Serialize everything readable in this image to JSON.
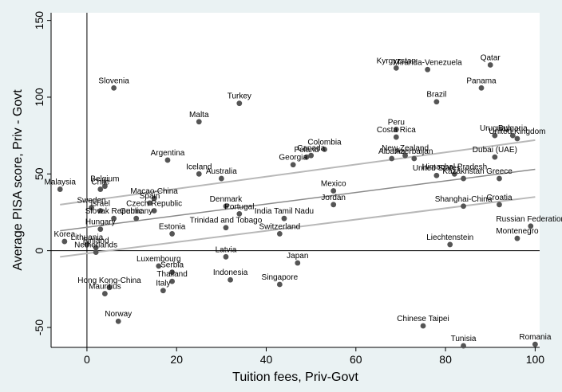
{
  "chart_data": {
    "type": "scatter",
    "title": "",
    "xlabel": "Tuition fees, Priv-Govt",
    "ylabel": "Average PISA score, Priv - Govt",
    "xlim": [
      -8,
      101
    ],
    "ylim": [
      -63,
      155
    ],
    "xticks": [
      0,
      20,
      40,
      60,
      80,
      100
    ],
    "yticks": [
      -50,
      0,
      50,
      100,
      150
    ],
    "grid": false,
    "legend": "none",
    "reference_lines": {
      "x": 0,
      "y": 0
    },
    "colors": {
      "background": "#eaf2f3",
      "plot_background": "#ffffff",
      "points": "#555555",
      "fit_line": "#8a8a8a",
      "ci_lines": "#b8b8b8"
    },
    "fit_line": {
      "x": [
        -6,
        100
      ],
      "y": [
        13,
        53
      ]
    },
    "ci_upper": {
      "x": [
        -6,
        100
      ],
      "y": [
        30,
        72
      ]
    },
    "ci_lower": {
      "x": [
        -6,
        100
      ],
      "y": [
        -4,
        35
      ]
    },
    "points": [
      {
        "label": "Kyrgyzstan",
        "x": 69,
        "y": 119
      },
      {
        "label": "Miranda-Venezuela",
        "x": 76,
        "y": 118
      },
      {
        "label": "Qatar",
        "x": 90,
        "y": 121
      },
      {
        "label": "Panama",
        "x": 88,
        "y": 106
      },
      {
        "label": "Slovenia",
        "x": 6,
        "y": 106
      },
      {
        "label": "Turkey",
        "x": 34,
        "y": 96
      },
      {
        "label": "Brazil",
        "x": 78,
        "y": 97
      },
      {
        "label": "Malta",
        "x": 25,
        "y": 84
      },
      {
        "label": "Peru",
        "x": 69,
        "y": 79
      },
      {
        "label": "Costa Rica",
        "x": 69,
        "y": 74
      },
      {
        "label": "Uruguay",
        "x": 91,
        "y": 75
      },
      {
        "label": "Bulgaria",
        "x": 95,
        "y": 75
      },
      {
        "label": "United Kingdom",
        "x": 96,
        "y": 73
      },
      {
        "label": "Colombia",
        "x": 53,
        "y": 66
      },
      {
        "label": "Canada",
        "x": 50,
        "y": 62
      },
      {
        "label": "Poland",
        "x": 49,
        "y": 61
      },
      {
        "label": "Georgia",
        "x": 46,
        "y": 56
      },
      {
        "label": "Albania",
        "x": 68,
        "y": 60
      },
      {
        "label": "New Zealand",
        "x": 71,
        "y": 62
      },
      {
        "label": "Azerbaijan",
        "x": 73,
        "y": 60
      },
      {
        "label": "Dubai (UAE)",
        "x": 91,
        "y": 61
      },
      {
        "label": "Argentina",
        "x": 18,
        "y": 59
      },
      {
        "label": "Iceland",
        "x": 25,
        "y": 50
      },
      {
        "label": "Australia",
        "x": 30,
        "y": 47
      },
      {
        "label": "United States",
        "x": 78,
        "y": 49
      },
      {
        "label": "Himachal Pradesh",
        "x": 82,
        "y": 50
      },
      {
        "label": "Kazakhstan",
        "x": 84,
        "y": 47
      },
      {
        "label": "Greece",
        "x": 92,
        "y": 47
      },
      {
        "label": "Malaysia",
        "x": -6,
        "y": 40
      },
      {
        "label": "Belgium",
        "x": 4,
        "y": 42
      },
      {
        "label": "Chile",
        "x": 3,
        "y": 40
      },
      {
        "label": "Mexico",
        "x": 55,
        "y": 39
      },
      {
        "label": "Macao-China",
        "x": 15,
        "y": 34
      },
      {
        "label": "Spain",
        "x": 14,
        "y": 31
      },
      {
        "label": "Sweden",
        "x": 1,
        "y": 28
      },
      {
        "label": "Israel",
        "x": 3,
        "y": 26
      },
      {
        "label": "Czech Republic",
        "x": 15,
        "y": 26
      },
      {
        "label": "Denmark",
        "x": 31,
        "y": 29
      },
      {
        "label": "Portugal",
        "x": 34,
        "y": 24
      },
      {
        "label": "Jordan",
        "x": 55,
        "y": 30
      },
      {
        "label": "Shanghai-China",
        "x": 84,
        "y": 29
      },
      {
        "label": "Croatia",
        "x": 92,
        "y": 30
      },
      {
        "label": "Slovak Republic",
        "x": 6,
        "y": 21
      },
      {
        "label": "Germany",
        "x": 11,
        "y": 21
      },
      {
        "label": "India Tamil Nadu",
        "x": 44,
        "y": 21
      },
      {
        "label": "Hungary",
        "x": 3,
        "y": 14
      },
      {
        "label": "Trinidad and Tobago",
        "x": 31,
        "y": 15
      },
      {
        "label": "Estonia",
        "x": 19,
        "y": 11
      },
      {
        "label": "Switzerland",
        "x": 43,
        "y": 11
      },
      {
        "label": "Russian Federation",
        "x": 99,
        "y": 16
      },
      {
        "label": "Montenegro",
        "x": 96,
        "y": 8
      },
      {
        "label": "Korea",
        "x": -5,
        "y": 6
      },
      {
        "label": "Lithuania",
        "x": 0,
        "y": 4
      },
      {
        "label": "Finland",
        "x": 2,
        "y": 2
      },
      {
        "label": "Netherlands",
        "x": 2,
        "y": -1
      },
      {
        "label": "Liechtenstein",
        "x": 81,
        "y": 4
      },
      {
        "label": "Latvia",
        "x": 31,
        "y": -4
      },
      {
        "label": "Luxembourg",
        "x": 16,
        "y": -10
      },
      {
        "label": "Serbia",
        "x": 19,
        "y": -14
      },
      {
        "label": "Thailand",
        "x": 19,
        "y": -20
      },
      {
        "label": "Japan",
        "x": 47,
        "y": -8
      },
      {
        "label": "Indonesia",
        "x": 32,
        "y": -19
      },
      {
        "label": "Singapore",
        "x": 43,
        "y": -22
      },
      {
        "label": "Hong Kong-China",
        "x": 5,
        "y": -24
      },
      {
        "label": "Italy",
        "x": 17,
        "y": -26
      },
      {
        "label": "Mauritius",
        "x": 4,
        "y": -28
      },
      {
        "label": "Norway",
        "x": 7,
        "y": -46
      },
      {
        "label": "Chinese Taipei",
        "x": 75,
        "y": -49
      },
      {
        "label": "Tunisia",
        "x": 84,
        "y": -62
      },
      {
        "label": "Romania",
        "x": 100,
        "y": -61
      }
    ]
  }
}
